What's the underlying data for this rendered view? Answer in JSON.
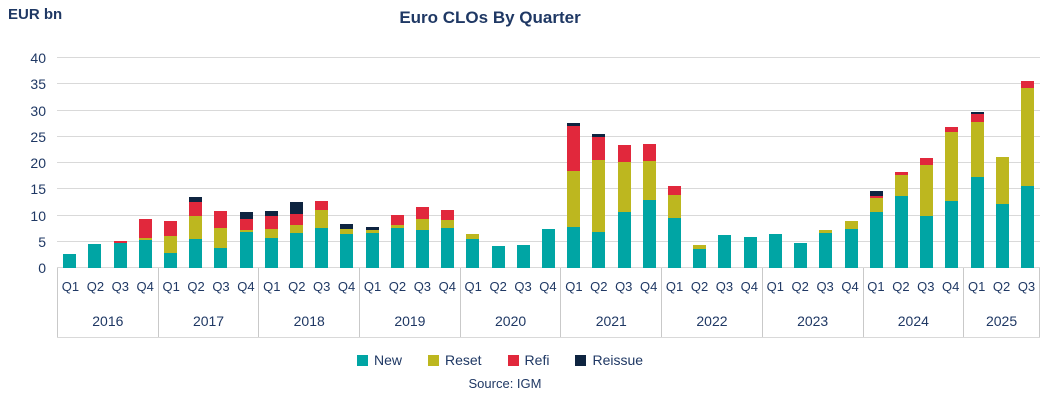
{
  "header": {
    "unit_label": "EUR bn",
    "title": "Euro CLOs By Quarter"
  },
  "footer": {
    "source": "Source: IGM"
  },
  "colors": {
    "new": "#00A5A4",
    "reset": "#BDB71F",
    "refi": "#E1283C",
    "reissue": "#0E2440",
    "axis_text": "#1F3864",
    "gridline": "#D9D9D9",
    "separator": "#C9C9C9"
  },
  "legend": [
    {
      "label": "New",
      "color_key": "new"
    },
    {
      "label": "Reset",
      "color_key": "reset"
    },
    {
      "label": "Refi",
      "color_key": "refi"
    },
    {
      "label": "Reissue",
      "color_key": "reissue"
    }
  ],
  "chart_data": {
    "type": "bar",
    "stacked": true,
    "title": "Euro CLOs By Quarter",
    "ylabel": "EUR bn",
    "ylim": [
      0,
      40
    ],
    "yticks": [
      0,
      5,
      10,
      15,
      20,
      25,
      30,
      35,
      40
    ],
    "grid": "horizontal",
    "legend_position": "bottom",
    "series_order": [
      "new",
      "reset",
      "refi",
      "reissue"
    ],
    "series_labels": {
      "new": "New",
      "reset": "Reset",
      "refi": "Refi",
      "reissue": "Reissue"
    },
    "groups": [
      {
        "year": "2016",
        "quarters": [
          "Q1",
          "Q2",
          "Q3",
          "Q4"
        ],
        "new": [
          2.7,
          4.5,
          4.7,
          5.3
        ],
        "reset": [
          0,
          0,
          0,
          0.5
        ],
        "refi": [
          0,
          0,
          0.4,
          3.5
        ],
        "reissue": [
          0,
          0,
          0,
          0
        ]
      },
      {
        "year": "2017",
        "quarters": [
          "Q1",
          "Q2",
          "Q3",
          "Q4"
        ],
        "new": [
          2.9,
          5.5,
          3.9,
          6.8
        ],
        "reset": [
          3.2,
          4.4,
          3.8,
          0.5
        ],
        "refi": [
          2.8,
          2.7,
          3.2,
          2.0
        ],
        "reissue": [
          0,
          0.9,
          0,
          1.3
        ]
      },
      {
        "year": "2018",
        "quarters": [
          "Q1",
          "Q2",
          "Q3",
          "Q4"
        ],
        "new": [
          5.8,
          6.7,
          7.6,
          6.5
        ],
        "reset": [
          1.7,
          1.4,
          3.4,
          0.9
        ],
        "refi": [
          2.5,
          2.2,
          1.8,
          0
        ],
        "reissue": [
          0.8,
          2.2,
          0,
          0.9
        ]
      },
      {
        "year": "2019",
        "quarters": [
          "Q1",
          "Q2",
          "Q3",
          "Q4"
        ],
        "new": [
          6.7,
          7.6,
          7.2,
          7.6
        ],
        "reset": [
          0.5,
          0.5,
          2.2,
          1.5
        ],
        "refi": [
          0,
          2.0,
          2.3,
          1.9
        ],
        "reissue": [
          0.6,
          0,
          0,
          0
        ]
      },
      {
        "year": "2020",
        "quarters": [
          "Q1",
          "Q2",
          "Q3",
          "Q4"
        ],
        "new": [
          5.5,
          4.1,
          4.4,
          7.4
        ],
        "reset": [
          1.0,
          0,
          0,
          0
        ],
        "refi": [
          0,
          0,
          0,
          0
        ],
        "reissue": [
          0,
          0,
          0,
          0
        ]
      },
      {
        "year": "2021",
        "quarters": [
          "Q1",
          "Q2",
          "Q3",
          "Q4"
        ],
        "new": [
          7.8,
          6.8,
          10.7,
          13.0
        ],
        "reset": [
          10.6,
          13.8,
          9.5,
          7.4
        ],
        "refi": [
          8.6,
          4.4,
          3.3,
          3.3
        ],
        "reissue": [
          0.6,
          0.6,
          0,
          0
        ]
      },
      {
        "year": "2022",
        "quarters": [
          "Q1",
          "Q2",
          "Q3",
          "Q4"
        ],
        "new": [
          9.6,
          3.6,
          6.2,
          6.0
        ],
        "reset": [
          4.3,
          0.8,
          0,
          0
        ],
        "refi": [
          1.8,
          0,
          0,
          0
        ],
        "reissue": [
          0,
          0,
          0,
          0
        ]
      },
      {
        "year": "2023",
        "quarters": [
          "Q1",
          "Q2",
          "Q3",
          "Q4"
        ],
        "new": [
          6.5,
          4.8,
          6.7,
          7.5
        ],
        "reset": [
          0,
          0,
          0.5,
          1.5
        ],
        "refi": [
          0,
          0,
          0,
          0
        ],
        "reissue": [
          0,
          0,
          0,
          0
        ]
      },
      {
        "year": "2024",
        "quarters": [
          "Q1",
          "Q2",
          "Q3",
          "Q4"
        ],
        "new": [
          10.7,
          13.8,
          10.0,
          12.7
        ],
        "reset": [
          2.6,
          3.9,
          9.7,
          13.3
        ],
        "refi": [
          0.4,
          0.6,
          1.3,
          0.9
        ],
        "reissue": [
          0.9,
          0,
          0,
          0
        ]
      },
      {
        "year": "2025",
        "quarters": [
          "Q1",
          "Q2",
          "Q3"
        ],
        "new": [
          17.3,
          12.1,
          15.7
        ],
        "reset": [
          10.6,
          9.0,
          18.6
        ],
        "refi": [
          1.4,
          0,
          1.4
        ],
        "reissue": [
          0.5,
          0,
          0
        ]
      }
    ]
  }
}
